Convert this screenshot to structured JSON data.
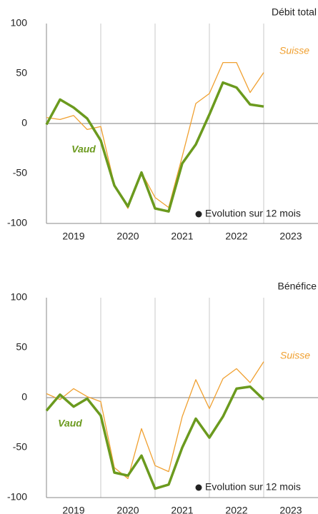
{
  "chart_data": [
    {
      "type": "line",
      "title": "Débit total",
      "x": [
        2019,
        2019.25,
        2019.5,
        2019.75,
        2020,
        2020.25,
        2020.5,
        2020.75,
        2021,
        2021.25,
        2021.5,
        2021.75,
        2022,
        2022.25,
        2022.5,
        2022.75,
        2023
      ],
      "series": [
        {
          "name": "Suisse",
          "color": "#f0a030",
          "values": [
            6,
            4,
            8,
            -6,
            -3,
            -61,
            -85,
            -49,
            -74,
            -84,
            -33,
            20,
            30,
            61,
            61,
            31,
            51
          ]
        },
        {
          "name": "Vaud",
          "color": "#6b9a1e",
          "values": [
            -1,
            24,
            16,
            5,
            -17,
            -62,
            -83,
            -49,
            -85,
            -88,
            -40,
            -21,
            9,
            41,
            36,
            19,
            17
          ]
        }
      ],
      "annotation": "Evolution sur 12 mois",
      "xlim": [
        2019,
        2024
      ],
      "xticks": [
        {
          "value": 2019.5,
          "label": "2019"
        },
        {
          "value": 2020.5,
          "label": "2020"
        },
        {
          "value": 2021.5,
          "label": "2021"
        },
        {
          "value": 2022.5,
          "label": "2022"
        },
        {
          "value": 2023.5,
          "label": "2023"
        }
      ],
      "ylim": [
        -100,
        100
      ],
      "yticks": [
        -100,
        -50,
        0,
        50,
        100
      ]
    },
    {
      "type": "line",
      "title": "Bénéfice",
      "x": [
        2019,
        2019.25,
        2019.5,
        2019.75,
        2020,
        2020.25,
        2020.5,
        2020.75,
        2021,
        2021.25,
        2021.5,
        2021.75,
        2022,
        2022.25,
        2022.5,
        2022.75,
        2023
      ],
      "series": [
        {
          "name": "Suisse",
          "color": "#f0a030",
          "values": [
            4,
            -2,
            9,
            1,
            -4,
            -70,
            -81,
            -31,
            -68,
            -74,
            -19,
            18,
            -11,
            19,
            29,
            15,
            36
          ]
        },
        {
          "name": "Vaud",
          "color": "#6b9a1e",
          "values": [
            -13,
            3,
            -9,
            -1,
            -18,
            -75,
            -78,
            -58,
            -91,
            -87,
            -50,
            -21,
            -40,
            -19,
            9,
            11,
            -2
          ]
        }
      ],
      "annotation": "Evolution sur 12 mois",
      "xlim": [
        2019,
        2024
      ],
      "xticks": [
        {
          "value": 2019.5,
          "label": "2019"
        },
        {
          "value": 2020.5,
          "label": "2020"
        },
        {
          "value": 2021.5,
          "label": "2021"
        },
        {
          "value": 2022.5,
          "label": "2022"
        },
        {
          "value": 2023.5,
          "label": "2023"
        }
      ],
      "ylim": [
        -100,
        100
      ],
      "yticks": [
        -100,
        -50,
        0,
        50,
        100
      ]
    }
  ]
}
